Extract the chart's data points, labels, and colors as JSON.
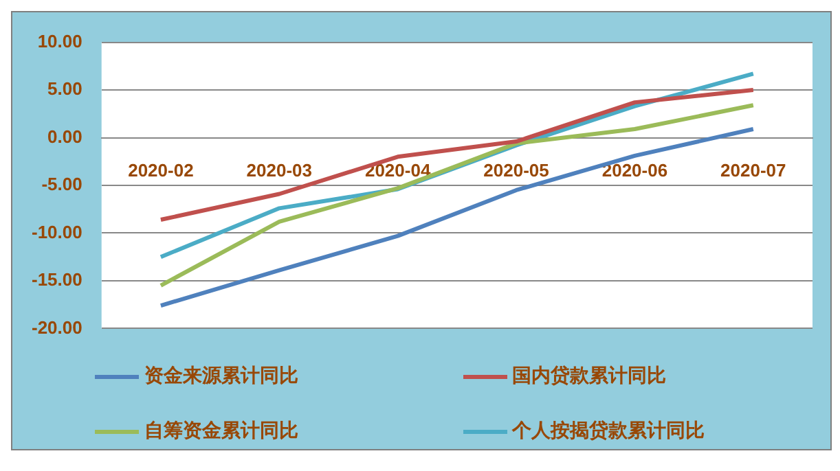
{
  "chart_data": {
    "type": "line",
    "categories": [
      "2020-02",
      "2020-03",
      "2020-04",
      "2020-05",
      "2020-06",
      "2020-07"
    ],
    "series": [
      {
        "name": "资金来源累计同比",
        "color": "#4f81bd",
        "values": [
          -17.6,
          -13.9,
          -10.3,
          -5.5,
          -1.9,
          0.9
        ]
      },
      {
        "name": "国内贷款累计同比",
        "color": "#c0504d",
        "values": [
          -8.6,
          -5.9,
          -2.0,
          -0.4,
          3.7,
          5.0
        ]
      },
      {
        "name": "自筹资金累计同比",
        "color": "#9bbb59",
        "values": [
          -15.5,
          -8.8,
          -5.3,
          -0.6,
          0.9,
          3.4
        ]
      },
      {
        "name": "个人按揭贷款累计同比",
        "color": "#4bacc6",
        "values": [
          -12.5,
          -7.4,
          -5.4,
          -0.8,
          3.3,
          6.7
        ]
      }
    ],
    "ylim": [
      -20,
      10
    ],
    "yticks": [
      {
        "value": -20,
        "label": "-20.00"
      },
      {
        "value": -15,
        "label": "-15.00"
      },
      {
        "value": -10,
        "label": "-10.00"
      },
      {
        "value": -5,
        "label": "-5.00"
      },
      {
        "value": 0,
        "label": "0.00"
      },
      {
        "value": 5,
        "label": "5.00"
      },
      {
        "value": 10,
        "label": "10.00"
      }
    ],
    "grid": "y",
    "legend": "bottom",
    "marker": "none",
    "line_style": "solid"
  }
}
